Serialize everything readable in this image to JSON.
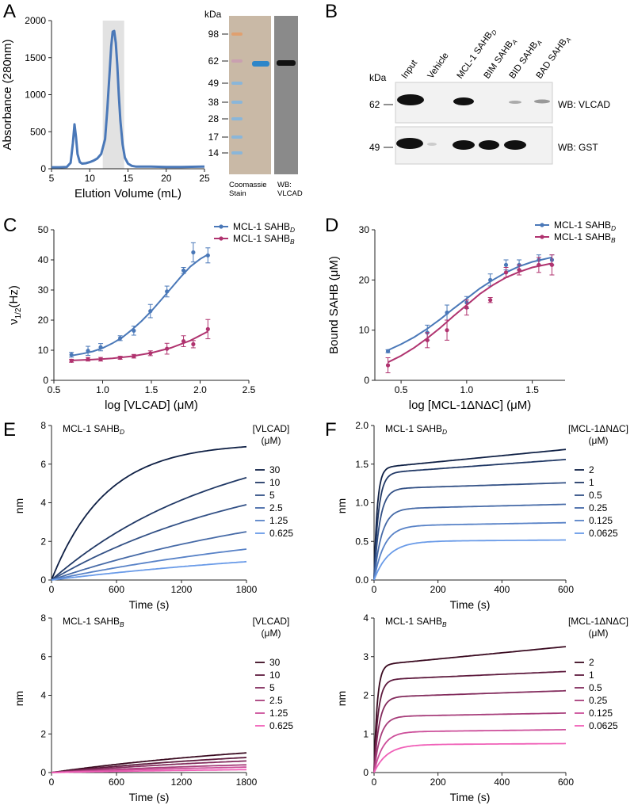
{
  "colors": {
    "blue": "#4a78b8",
    "lightblue": "#8fb0e0",
    "magenta": "#b0336f",
    "gelgray": "#8a8a8a",
    "coomassie": "#c9b9a6",
    "blot": "#111111",
    "gelband": "#2d86c9",
    "textdark": "#222222"
  },
  "panels": {
    "A": {
      "letter": "A"
    },
    "B": {
      "letter": "B"
    },
    "C": {
      "letter": "C"
    },
    "D": {
      "letter": "D"
    },
    "E": {
      "letter": "E"
    },
    "F": {
      "letter": "F"
    }
  },
  "chart_data": [
    {
      "id": "A-sec",
      "type": "line",
      "ylabel": "Absorbance (280nm)",
      "xlabel": "Elution Volume (mL)",
      "xlim": [
        5,
        25
      ],
      "ylim": [
        0,
        2000
      ],
      "xticks": [
        5,
        10,
        15,
        20,
        25
      ],
      "yticks": [
        0,
        500,
        1000,
        1500,
        2000
      ],
      "shaded_region": [
        11.7,
        14.5
      ],
      "series": [
        {
          "x": [
            5,
            6,
            7,
            7.5,
            7.8,
            8.0,
            8.2,
            8.4,
            8.7,
            9.0,
            9.5,
            10,
            10.5,
            11,
            11.5,
            12,
            12.3,
            12.6,
            12.8,
            13.0,
            13.2,
            13.4,
            13.6,
            13.8,
            14.0,
            14.3,
            14.6,
            15,
            15.5,
            16,
            17,
            18,
            20,
            22,
            25
          ],
          "values": [
            20,
            20,
            25,
            80,
            350,
            600,
            430,
            200,
            90,
            70,
            75,
            90,
            110,
            140,
            200,
            400,
            800,
            1300,
            1650,
            1850,
            1860,
            1700,
            1400,
            1000,
            650,
            330,
            150,
            70,
            40,
            30,
            30,
            30,
            25,
            25,
            30
          ]
        }
      ]
    },
    {
      "id": "C",
      "type": "scatter",
      "xlabel": "log [VLCAD] (μM)",
      "ylabel": "ν1/2(Hz)",
      "xlim": [
        0.5,
        2.5
      ],
      "ylim": [
        0,
        50
      ],
      "xticks": [
        0.5,
        1.0,
        1.5,
        2.0,
        2.5
      ],
      "yticks": [
        0,
        10,
        20,
        30,
        40,
        50
      ],
      "legend": [
        "MCL-1 SAHBD",
        "MCL-1 SAHBB"
      ],
      "series": [
        {
          "name": "MCL-1 SAHBD",
          "x": [
            0.68,
            0.85,
            0.98,
            1.18,
            1.32,
            1.49,
            1.66,
            1.83,
            1.93,
            2.08
          ],
          "values": [
            8.5,
            9.8,
            11,
            14,
            16.5,
            23,
            29.5,
            36.5,
            42.5,
            41.5
          ],
          "err": [
            0.8,
            1.5,
            1.2,
            0.8,
            1.5,
            2.2,
            1.8,
            1.0,
            3.2,
            2.5
          ],
          "fit": [
            [
              0.68,
              8.2
            ],
            [
              0.8,
              8.9
            ],
            [
              0.9,
              9.6
            ],
            [
              1.0,
              10.7
            ],
            [
              1.1,
              12.3
            ],
            [
              1.2,
              14.2
            ],
            [
              1.3,
              16.8
            ],
            [
              1.4,
              19.7
            ],
            [
              1.5,
              23.0
            ],
            [
              1.6,
              26.7
            ],
            [
              1.7,
              30.5
            ],
            [
              1.8,
              34.3
            ],
            [
              1.9,
              37.8
            ],
            [
              2.0,
              40.3
            ],
            [
              2.08,
              41.8
            ]
          ]
        },
        {
          "name": "MCL-1 SAHBB",
          "x": [
            0.68,
            0.85,
            0.98,
            1.18,
            1.32,
            1.49,
            1.66,
            1.83,
            1.93,
            2.08
          ],
          "values": [
            6.5,
            7.0,
            7.0,
            7.5,
            8.0,
            9.0,
            10.5,
            13.0,
            12.0,
            17.0
          ],
          "err": [
            0.5,
            0.6,
            0.6,
            0.5,
            0.6,
            0.8,
            1.8,
            1.8,
            1.2,
            3.2
          ],
          "fit": [
            [
              0.68,
              6.6
            ],
            [
              0.9,
              6.9
            ],
            [
              1.1,
              7.3
            ],
            [
              1.3,
              8.0
            ],
            [
              1.5,
              9.1
            ],
            [
              1.7,
              10.8
            ],
            [
              1.9,
              13.2
            ],
            [
              2.08,
              16.2
            ]
          ]
        }
      ]
    },
    {
      "id": "D",
      "type": "scatter",
      "xlabel": "log [MCL-1ΔNΔC] (μM)",
      "ylabel": "Bound SAHB (μM)",
      "xlim": [
        0.3,
        1.75
      ],
      "ylim": [
        0,
        30
      ],
      "xticks": [
        0.5,
        1.0,
        1.5
      ],
      "yticks": [
        0,
        10,
        20,
        30
      ],
      "legend": [
        "MCL-1 SAHBD",
        "MCL-1 SAHBB"
      ],
      "series": [
        {
          "name": "MCL-1 SAHBD",
          "x": [
            0.4,
            0.7,
            0.85,
            1.0,
            1.18,
            1.3,
            1.4,
            1.55,
            1.65
          ],
          "values": [
            5.8,
            9.5,
            13.5,
            15.5,
            20,
            23,
            23,
            24,
            24
          ],
          "err": [
            0.3,
            1.5,
            1.5,
            1.2,
            1.2,
            1.0,
            1.0,
            1.0,
            1.0
          ],
          "fit": [
            [
              0.4,
              6.0
            ],
            [
              0.5,
              7.2
            ],
            [
              0.6,
              8.6
            ],
            [
              0.7,
              10.3
            ],
            [
              0.8,
              12.2
            ],
            [
              0.9,
              14.3
            ],
            [
              1.0,
              16.3
            ],
            [
              1.1,
              18.3
            ],
            [
              1.2,
              20.0
            ],
            [
              1.3,
              21.5
            ],
            [
              1.4,
              22.7
            ],
            [
              1.5,
              23.6
            ],
            [
              1.65,
              24.5
            ]
          ]
        },
        {
          "name": "MCL-1 SAHBB",
          "x": [
            0.4,
            0.7,
            0.85,
            1.0,
            1.18,
            1.3,
            1.4,
            1.55,
            1.65
          ],
          "values": [
            3.0,
            8.0,
            10,
            14.5,
            16,
            21.5,
            22,
            23,
            23
          ],
          "err": [
            1.5,
            1.5,
            2.0,
            1.5,
            0.5,
            1.0,
            1.0,
            1.5,
            2.0
          ],
          "fit": [
            [
              0.4,
              3.6
            ],
            [
              0.5,
              4.9
            ],
            [
              0.6,
              6.5
            ],
            [
              0.7,
              8.4
            ],
            [
              0.8,
              10.5
            ],
            [
              0.9,
              12.8
            ],
            [
              1.0,
              15.0
            ],
            [
              1.1,
              17.2
            ],
            [
              1.2,
              19.0
            ],
            [
              1.3,
              20.5
            ],
            [
              1.4,
              21.6
            ],
            [
              1.5,
              22.5
            ],
            [
              1.65,
              23.3
            ]
          ]
        }
      ]
    },
    {
      "id": "E-top",
      "type": "line",
      "title": "MCL-1 SAHB",
      "title_sub": "D",
      "xlabel": "Time (s)",
      "ylabel": "nm",
      "xlim": [
        0,
        1800
      ],
      "ylim": [
        0,
        8
      ],
      "xticks": [
        0,
        600,
        1200,
        1800
      ],
      "yticks": [
        0,
        2,
        4,
        6,
        8
      ],
      "legend_title": "[VLCAD]",
      "legend_unit": "(μM)",
      "series": [
        {
          "name": "30",
          "final": 6.9,
          "tau": 500,
          "shape": "assoc"
        },
        {
          "name": "10",
          "final": 5.3,
          "tau": 1600,
          "shape": "assoc"
        },
        {
          "name": "5",
          "final": 3.9,
          "tau": 2000,
          "shape": "assoc"
        },
        {
          "name": "2.5",
          "final": 2.5,
          "tau": 2600,
          "shape": "assoc"
        },
        {
          "name": "1.25",
          "final": 1.6,
          "tau": 3000,
          "shape": "assoc"
        },
        {
          "name": "0.625",
          "final": 0.95,
          "tau": 3200,
          "shape": "assoc"
        }
      ]
    },
    {
      "id": "F-top",
      "type": "line",
      "title": "MCL-1 SAHB",
      "title_sub": "D",
      "xlabel": "Time (s)",
      "ylabel": "nm",
      "xlim": [
        0,
        600
      ],
      "ylim": [
        0,
        2.0
      ],
      "xticks": [
        0,
        200,
        400,
        600
      ],
      "yticks": [
        0.0,
        0.5,
        1.0,
        1.5,
        2.0
      ],
      "legend_title": "[MCL-1ΔNΔC]",
      "legend_unit": "(μM)",
      "series": [
        {
          "name": "2",
          "fast": 1.45,
          "tau": 10,
          "slope": 0.0004
        },
        {
          "name": "1",
          "fast": 1.38,
          "tau": 14,
          "slope": 0.0003
        },
        {
          "name": "0.5",
          "fast": 1.18,
          "tau": 18,
          "slope": 0.00013
        },
        {
          "name": "0.25",
          "fast": 0.92,
          "tau": 24,
          "slope": 0.0001
        },
        {
          "name": "0.125",
          "fast": 0.7,
          "tau": 32,
          "slope": 7e-05
        },
        {
          "name": "0.0625",
          "fast": 0.5,
          "tau": 45,
          "slope": 3e-05
        }
      ]
    },
    {
      "id": "E-bottom",
      "type": "line",
      "title": "MCL-1 SAHB",
      "title_sub": "B",
      "xlabel": "Time (s)",
      "ylabel": "nm",
      "xlim": [
        0,
        1800
      ],
      "ylim": [
        0,
        8
      ],
      "xticks": [
        0,
        600,
        1200,
        1800
      ],
      "yticks": [
        0,
        2,
        4,
        6,
        8
      ],
      "legend_title": "[VLCAD]",
      "legend_unit": "(μM)",
      "series": [
        {
          "name": "30",
          "final": 1.02,
          "tau": 2500,
          "shape": "assoc"
        },
        {
          "name": "10",
          "final": 0.78,
          "tau": 2500,
          "shape": "assoc"
        },
        {
          "name": "5",
          "final": 0.6,
          "tau": 2500,
          "shape": "assoc"
        },
        {
          "name": "2.5",
          "final": 0.4,
          "tau": 2500,
          "shape": "assoc"
        },
        {
          "name": "1.25",
          "final": 0.28,
          "tau": 2500,
          "shape": "assoc"
        },
        {
          "name": "0.625",
          "final": 0.15,
          "tau": 2500,
          "shape": "assoc"
        }
      ]
    },
    {
      "id": "F-bottom",
      "type": "line",
      "title": "MCL-1 SAHB",
      "title_sub": "B",
      "xlabel": "Time (s)",
      "ylabel": "nm",
      "xlim": [
        0,
        600
      ],
      "ylim": [
        0,
        4
      ],
      "xticks": [
        0,
        200,
        400,
        600
      ],
      "yticks": [
        0,
        1,
        2,
        3,
        4
      ],
      "legend_title": "[MCL-1ΔNΔC]",
      "legend_unit": "(μM)",
      "series": [
        {
          "name": "2",
          "fast": 2.78,
          "tau": 10,
          "slope": 0.0008
        },
        {
          "name": "1",
          "fast": 2.4,
          "tau": 13,
          "slope": 0.00036
        },
        {
          "name": "0.5",
          "fast": 1.95,
          "tau": 16,
          "slope": 0.00028
        },
        {
          "name": "0.25",
          "fast": 1.45,
          "tau": 20,
          "slope": 0.00015
        },
        {
          "name": "0.125",
          "fast": 1.05,
          "tau": 28,
          "slope": 0.0001
        },
        {
          "name": "0.0625",
          "fast": 0.72,
          "tau": 40,
          "slope": 5e-05
        }
      ]
    }
  ],
  "gel": {
    "kda_label": "kDa",
    "markers": [
      "98",
      "62",
      "49",
      "38",
      "28",
      "17",
      "14"
    ],
    "lane1_label_line1": "Coomassie",
    "lane1_label_line2": "Stain",
    "lane2_label_line1": "WB:",
    "lane2_label_line2": "VLCAD"
  },
  "blot": {
    "kda_label": "kDa",
    "lanes": [
      "Input",
      "Vehicle",
      "MCL-1 SAHB",
      "BIM SAHB",
      "BID SAHB",
      "BAD SAHB"
    ],
    "lane_subs": [
      "",
      "",
      "D",
      "A",
      "A",
      "A"
    ],
    "row1_marker": "62",
    "row2_marker": "49",
    "row1_label": "WB: VLCAD",
    "row2_label": "WB: GST"
  }
}
